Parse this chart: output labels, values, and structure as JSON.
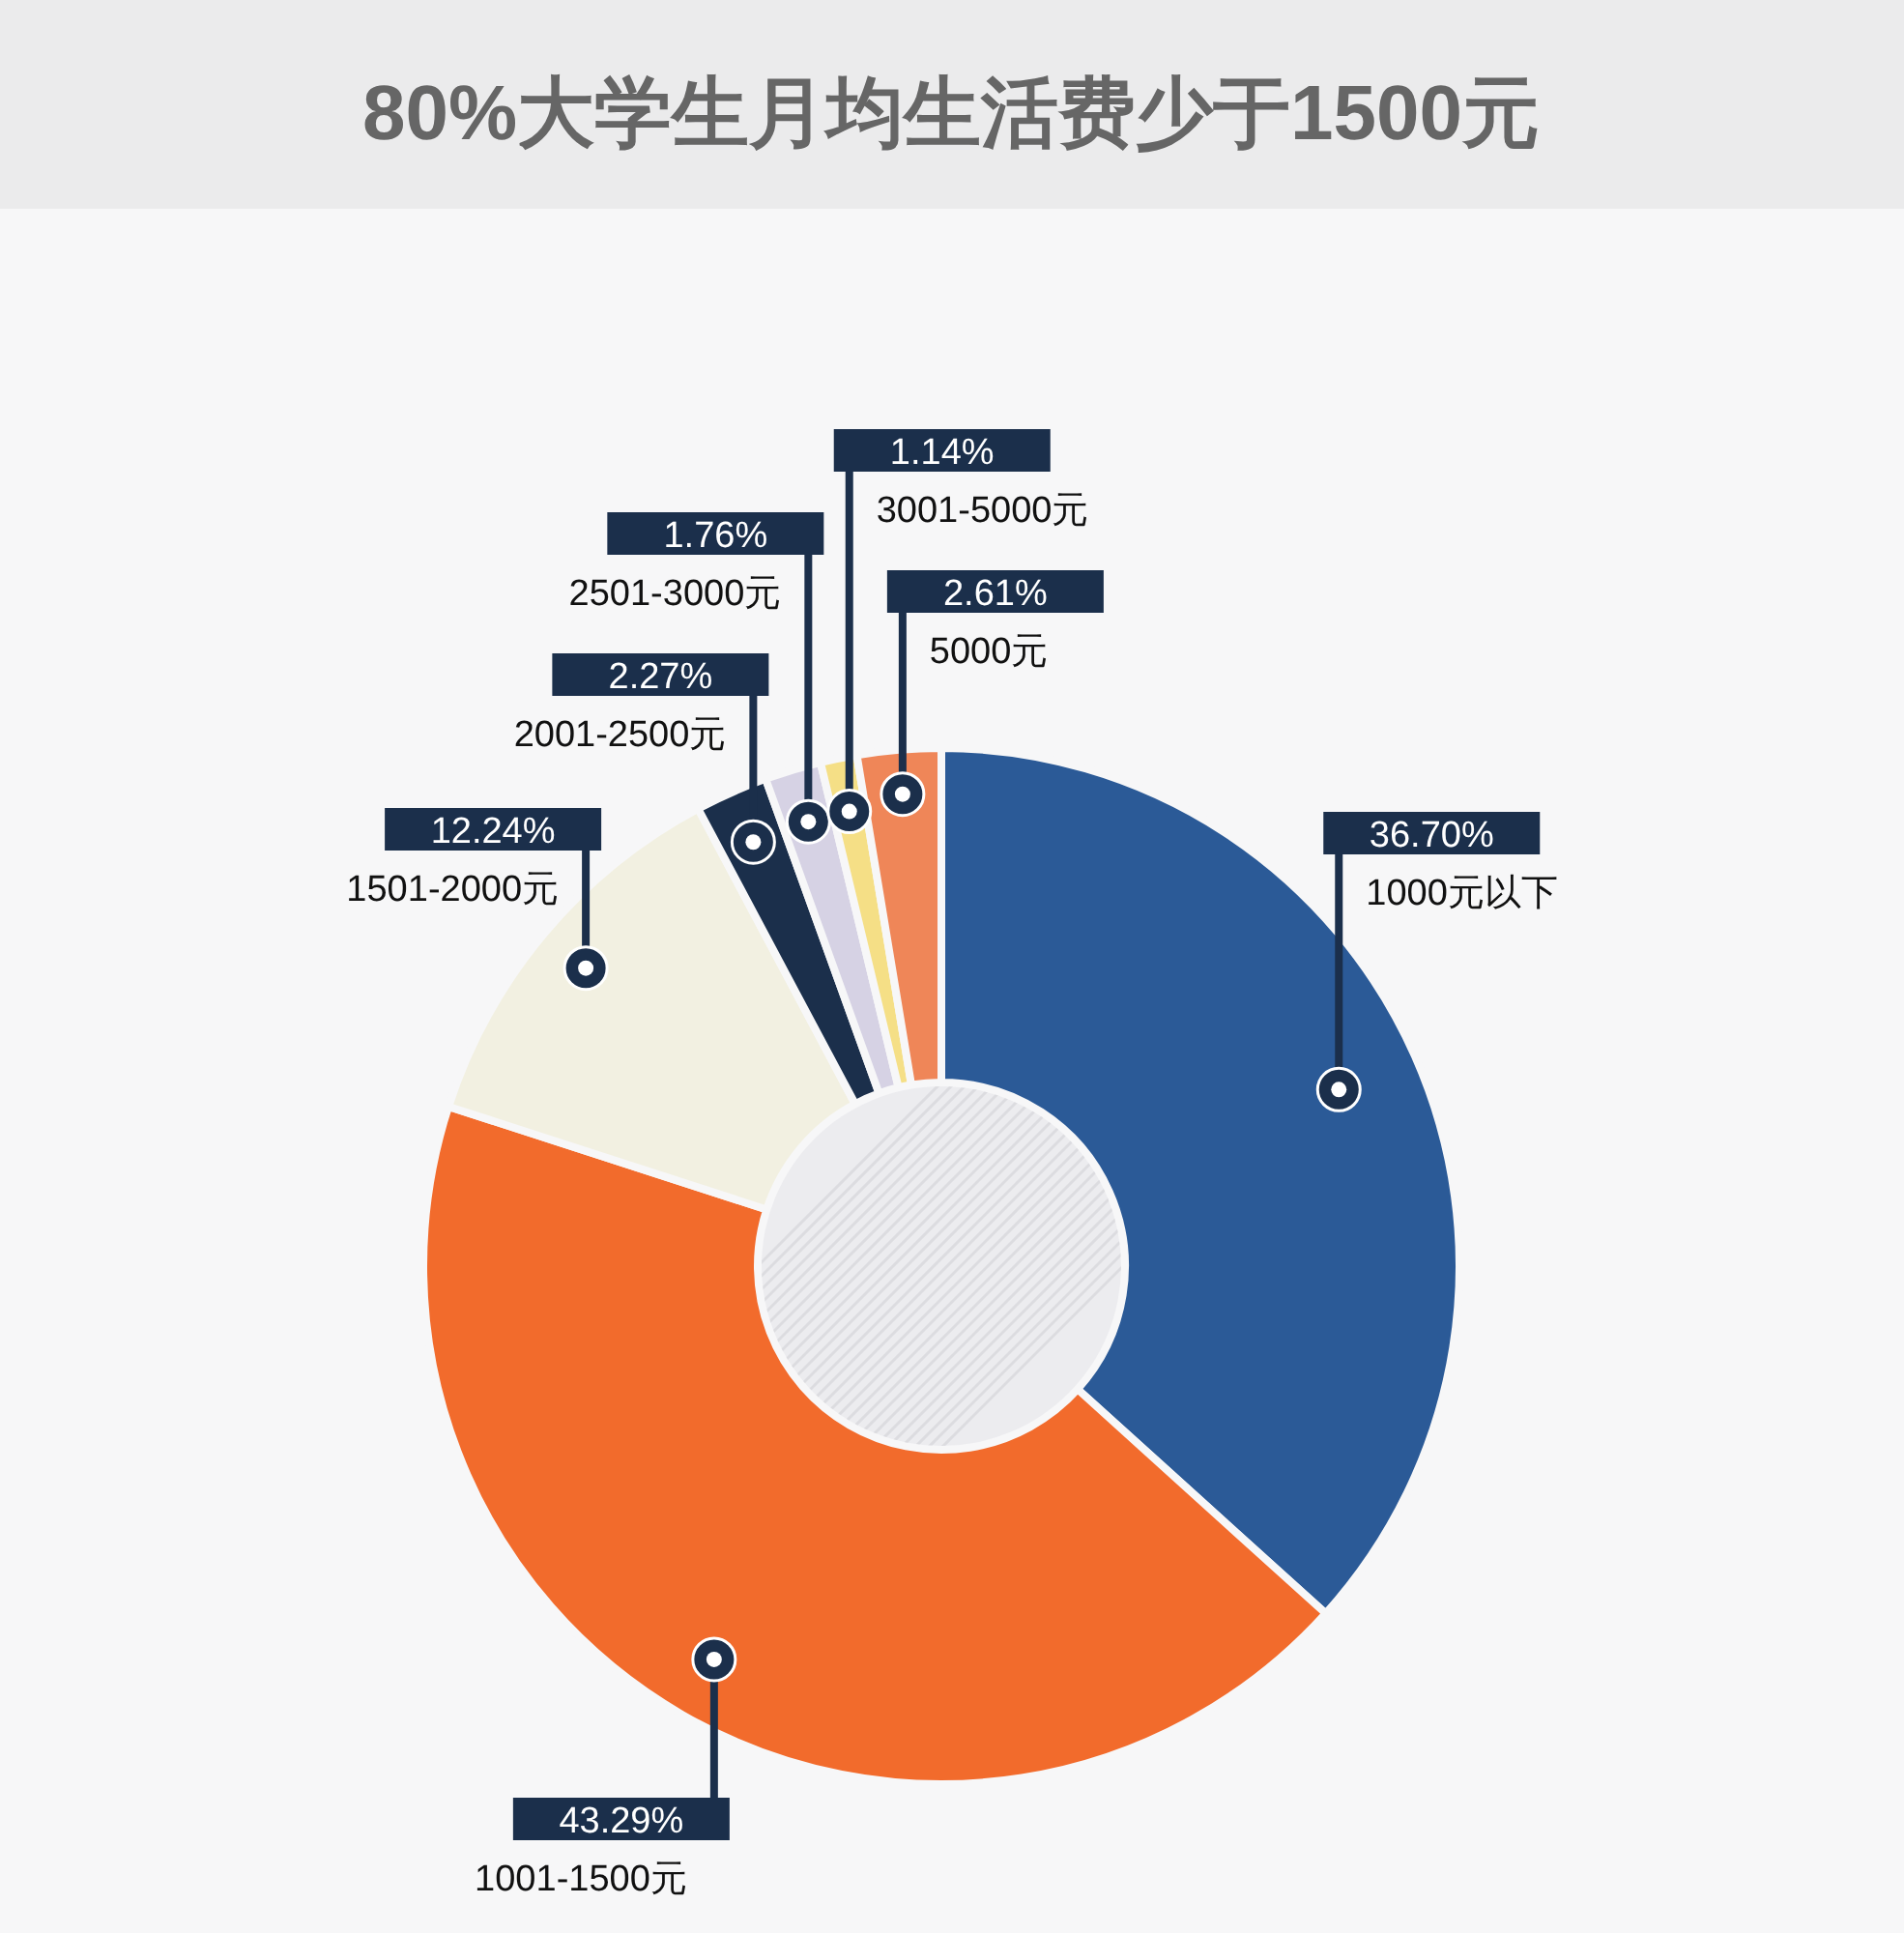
{
  "chart_data": {
    "type": "donut",
    "title": "80%大学生月均生活费少于1500元",
    "categories": [
      "1000元以下",
      "1001-1500元",
      "1501-2000元",
      "2001-2500元",
      "2501-3000元",
      "3001-5000元",
      "5000元"
    ],
    "values": [
      36.7,
      43.29,
      12.24,
      2.27,
      1.76,
      1.14,
      2.61
    ],
    "colors": [
      "#2b5a97",
      "#f26b2c",
      "#f2f0e1",
      "#1b2f4b",
      "#d6d2e4",
      "#f5df86",
      "#ef8658"
    ],
    "value_labels": [
      "36.70%",
      "43.29%",
      "12.24%",
      "2.27%",
      "1.76%",
      "1.14%",
      "2.61%"
    ]
  }
}
